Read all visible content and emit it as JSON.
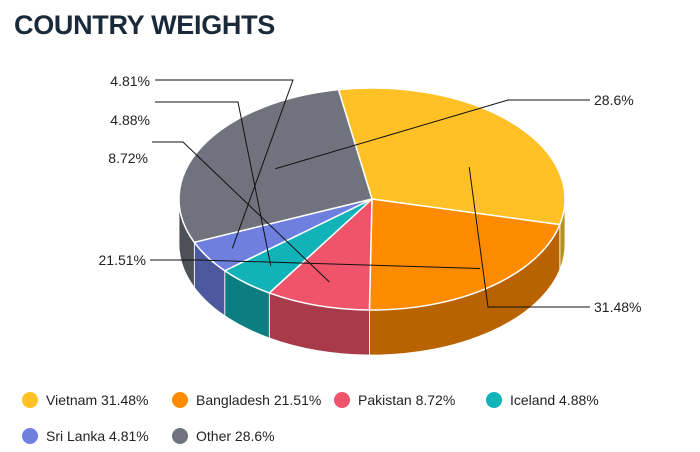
{
  "title": "COUNTRY WEIGHTS",
  "chart_data": {
    "type": "pie",
    "title": "COUNTRY WEIGHTS",
    "three_d": true,
    "legend_position": "bottom",
    "slices": [
      {
        "name": "Vietnam",
        "value": 31.48,
        "label": "31.48%",
        "legend": "Vietnam 31.48%",
        "color": "#FFC125",
        "side_color": "#B8901E"
      },
      {
        "name": "Bangladesh",
        "value": 21.51,
        "label": "21.51%",
        "legend": "Bangladesh 21.51%",
        "color": "#FF8C00",
        "side_color": "#B86300"
      },
      {
        "name": "Pakistan",
        "value": 8.72,
        "label": "8.72%",
        "legend": "Pakistan 8.72%",
        "color": "#F0546A",
        "side_color": "#A83A4A"
      },
      {
        "name": "Iceland",
        "value": 4.88,
        "label": "4.88%",
        "legend": "Iceland 4.88%",
        "color": "#12B3B8",
        "side_color": "#0C7E82"
      },
      {
        "name": "Sri Lanka",
        "value": 4.81,
        "label": "4.81%",
        "legend": "Sri Lanka 4.81%",
        "color": "#6E7FE0",
        "side_color": "#4D599E"
      },
      {
        "name": "Other",
        "value": 28.6,
        "label": "28.6%",
        "legend": "Other 28.6%",
        "color": "#70737D",
        "side_color": "#4E5058"
      }
    ]
  }
}
